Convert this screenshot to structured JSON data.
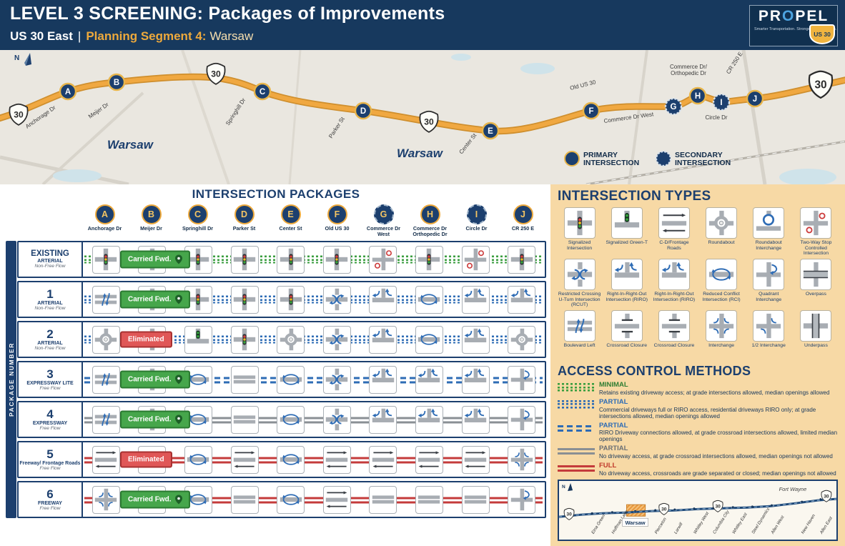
{
  "colors": {
    "navy": "#17395e",
    "gold": "#eda93c",
    "panel_tan": "#f7d9a5",
    "carried_green": "#46a64b",
    "eliminated_red": "#e05757",
    "corridor_orange": "#f0a841"
  },
  "header": {
    "title": "LEVEL 3 SCREENING: Packages of Improvements",
    "subtitle_road": "US 30 East",
    "subtitle_divider": "|",
    "subtitle_segment": "Planning Segment 4:",
    "subtitle_location": "Warsaw",
    "logo": {
      "brand_left": "PR",
      "brand_o": "O",
      "brand_right": "PEL",
      "tagline": "Smarter Transportation. Stronger Communities.",
      "shield": "US 30"
    }
  },
  "map": {
    "north_label": "N",
    "shield_text": "30",
    "city_labels": [
      "Warsaw",
      "Warsaw"
    ],
    "legend": {
      "primary_line1": "PRIMARY",
      "primary_line2": "INTERSECTION",
      "secondary_line1": "SECONDARY",
      "secondary_line2": "INTERSECTION"
    },
    "intersections": [
      {
        "letter": "A",
        "name": "Anchorage Dr",
        "type": "primary"
      },
      {
        "letter": "B",
        "name": "Meijer Dr",
        "type": "primary"
      },
      {
        "letter": "C",
        "name": "Springhill Dr",
        "type": "primary"
      },
      {
        "letter": "D",
        "name": "Parker St",
        "type": "primary"
      },
      {
        "letter": "E",
        "name": "Center St",
        "type": "primary"
      },
      {
        "letter": "F",
        "name": "Old US 30",
        "type": "primary"
      },
      {
        "letter": "G",
        "name": "Commerce Dr West",
        "type": "secondary"
      },
      {
        "letter": "H",
        "name": "Commerce Dr Orthopedic Dr",
        "type": "primary"
      },
      {
        "letter": "I",
        "name": "Circle Dr",
        "type": "secondary"
      },
      {
        "letter": "J",
        "name": "CR 250 E",
        "type": "primary"
      }
    ],
    "road_labels": [
      "Anchorage Dr",
      "Meijer Dr",
      "Springhill Dr",
      "Parker St",
      "Center St",
      "Old US 30",
      "Commerce Dr West",
      "Commerce Dr/",
      "Orthopedic Dr",
      "Circle Dr",
      "CR 250 E"
    ]
  },
  "packages": {
    "title": "INTERSECTION PACKAGES",
    "side_label": "PACKAGE NUMBER",
    "rows": [
      {
        "number": "EXISTING",
        "name": "ARTERIAL",
        "flow": "Non-Free Flow",
        "status": "Carried Fwd.",
        "status_type": "carried",
        "access": "minimal-green",
        "icons": [
          "signal",
          "signal",
          "signal",
          "signal",
          "signal",
          "signal",
          "two-way-stop",
          "signal",
          "two-way-stop",
          "signal"
        ]
      },
      {
        "number": "1",
        "name": "ARTERIAL",
        "flow": "Non-Free Flow",
        "status": "Carried Fwd.",
        "status_type": "carried",
        "access": "partial-blue-dotted",
        "icons": [
          "boulevard-left",
          "signal",
          "signal",
          "signal",
          "signal",
          "rcut",
          "riro",
          "rci",
          "riro",
          "riro"
        ]
      },
      {
        "number": "2",
        "name": "ARTERIAL",
        "flow": "Non-Free Flow",
        "status": "Eliminated",
        "status_type": "eliminated",
        "access": "partial-blue-dotted",
        "icons": [
          "roundabout",
          "signal",
          "green-t",
          "signal",
          "roundabout",
          "rcut",
          "riro",
          "rci",
          "riro",
          "roundabout"
        ]
      },
      {
        "number": "3",
        "name": "EXPRESSWAY LITE",
        "flow": "Free Flow",
        "status": "Carried Fwd.",
        "status_type": "carried",
        "access": "partial-blue-dashed",
        "icons": [
          "boulevard-left",
          "signal",
          "rci",
          "road",
          "rci",
          "rcut",
          "riro",
          "riro",
          "riro",
          "quadrant"
        ]
      },
      {
        "number": "4",
        "name": "EXPRESSWAY",
        "flow": "Free Flow",
        "status": "Carried Fwd.",
        "status_type": "carried",
        "access": "partial-gray",
        "icons": [
          "boulevard-left",
          "signal",
          "rci",
          "road",
          "rci",
          "rcut",
          "riro",
          "riro",
          "riro",
          "quadrant"
        ]
      },
      {
        "number": "5",
        "name": "Freeway/ Frontage Roads",
        "flow": "Free Flow",
        "status": "Eliminated",
        "status_type": "eliminated",
        "access": "full-red",
        "icons": [
          "cd-frontage",
          "cd-frontage",
          "rci",
          "cd-frontage",
          "rci",
          "cd-frontage",
          "cd-frontage",
          "cd-frontage",
          "cd-frontage",
          "interchange"
        ]
      },
      {
        "number": "6",
        "name": "FREEWAY",
        "flow": "Free Flow",
        "status": "Carried Fwd.",
        "status_type": "carried",
        "access": "full-red",
        "icons": [
          "interchange",
          "road",
          "rci",
          "road",
          "rci",
          "cd-frontage",
          "road",
          "road",
          "road",
          "quadrant"
        ]
      }
    ]
  },
  "intersection_types": {
    "title": "INTERSECTION TYPES",
    "items": [
      {
        "label": "Signalized Intersection",
        "icon": "signal"
      },
      {
        "label": "Signalized Green-T",
        "icon": "green-t"
      },
      {
        "label": "C-D/Frontage Roads",
        "icon": "cd-frontage"
      },
      {
        "label": "Roundabout",
        "icon": "roundabout"
      },
      {
        "label": "Roundabout Interchange",
        "icon": "roundabout-interchange"
      },
      {
        "label": "Two-Way Stop Controlled Intersection",
        "icon": "two-way-stop"
      },
      {
        "label": "Restricted Crossing U-Turn Intersection (RCUT)",
        "icon": "rcut"
      },
      {
        "label": "Right-In-Right-Out Intersection (RIRO)",
        "icon": "riro"
      },
      {
        "label": "Right-In-Right-Out Intersection (RIRO)",
        "icon": "riro"
      },
      {
        "label": "Reduced Conflict Intersection (RCI)",
        "icon": "rci"
      },
      {
        "label": "Quadrant Interchange",
        "icon": "quadrant"
      },
      {
        "label": "Overpass",
        "icon": "overpass"
      },
      {
        "label": "Boulevard Left",
        "icon": "boulevard-left"
      },
      {
        "label": "Crossroad Closure",
        "icon": "closure"
      },
      {
        "label": "Crossroad Closure",
        "icon": "closure"
      },
      {
        "label": "Interchange",
        "icon": "interchange"
      },
      {
        "label": "1/2 Interchange",
        "icon": "half-interchange"
      },
      {
        "label": "Underpass",
        "icon": "underpass"
      }
    ]
  },
  "access_control": {
    "title": "ACCESS CONTROL METHODS",
    "items": [
      {
        "name": "MINIMAL",
        "style": "minimal-green",
        "desc": "Retains existing driveway access; at grade intersections allowed, median openings allowed"
      },
      {
        "name": "PARTIAL",
        "style": "partial-blue-dotted",
        "desc": "Commercial driveways full or RIRO access, residential driveways RIRO only; at grade intersections allowed, median openings allowed"
      },
      {
        "name": "PARTIAL",
        "style": "partial-blue-dashed",
        "desc": "RIRO Driveway connections allowed, at grade crossroad intersections allowed, limited median openings"
      },
      {
        "name": "PARTIAL",
        "style": "partial-gray",
        "desc": "No driveway access, at grade crossroad intersections allowed, median openings not allowed"
      },
      {
        "name": "FULL",
        "style": "full-red",
        "desc": "No driveway access, crossroads are grade separated or closed; median openings not allowed"
      }
    ]
  },
  "mini_map": {
    "north_label": "N",
    "shield_text": "30",
    "city_label": "Fort Wayne",
    "highlight_town": "Warsaw",
    "towns": [
      "Etna Green",
      "Hoffman Lake",
      "Warsaw",
      "Pierceton",
      "Larwill",
      "Whitley West",
      "Columbia City",
      "Whitley East",
      "Steel Dynamics",
      "Allen West",
      "New Haven",
      "Allen East"
    ]
  }
}
